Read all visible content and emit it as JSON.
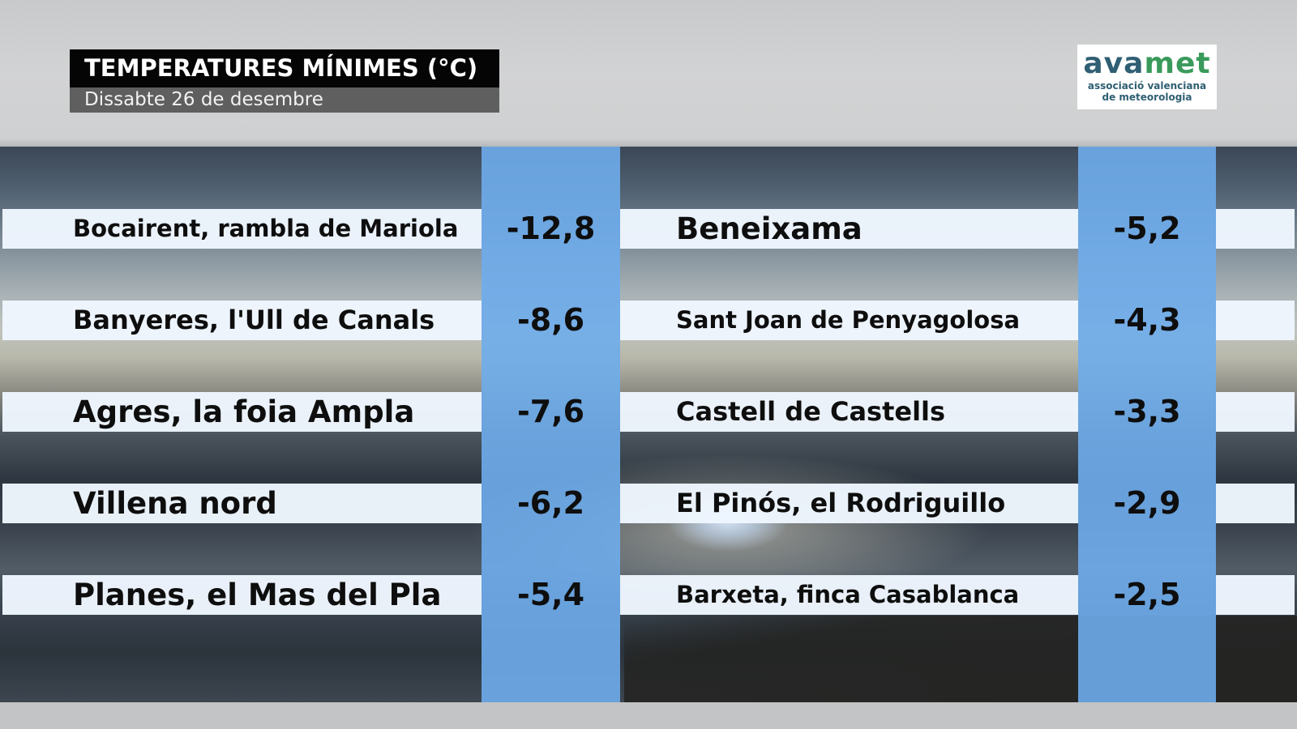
{
  "header": {
    "title": "TEMPERATURES MÍNIMES (°C)",
    "subtitle": "Dissabte 26 de desembre"
  },
  "logo": {
    "word_a": "ava",
    "word_b": "met",
    "line1": "associació valenciana",
    "line2": "de meteorologia"
  },
  "colors": {
    "value_column": "#6eacEB",
    "row_band": "#eef6fe",
    "title_bg": "#050505",
    "subtitle_bg": "#5f5f5f"
  },
  "left_stations": [
    {
      "name": "Bocairent, rambla de Mariola",
      "value": "-12,8"
    },
    {
      "name": "Banyeres, l'Ull de Canals",
      "value": "-8,6"
    },
    {
      "name": "Agres, la foia Ampla",
      "value": "-7,6"
    },
    {
      "name": "Villena nord",
      "value": "-6,2"
    },
    {
      "name": "Planes, el Mas del Pla",
      "value": "-5,4"
    }
  ],
  "right_stations": [
    {
      "name": "Beneixama",
      "value": "-5,2"
    },
    {
      "name": "Sant Joan de Penyagolosa",
      "value": "-4,3"
    },
    {
      "name": "Castell de Castells",
      "value": "-3,3"
    },
    {
      "name": "El Pinós, el Rodriguillo",
      "value": "-2,9"
    },
    {
      "name": "Barxeta, finca Casablanca",
      "value": "-2,5"
    }
  ]
}
